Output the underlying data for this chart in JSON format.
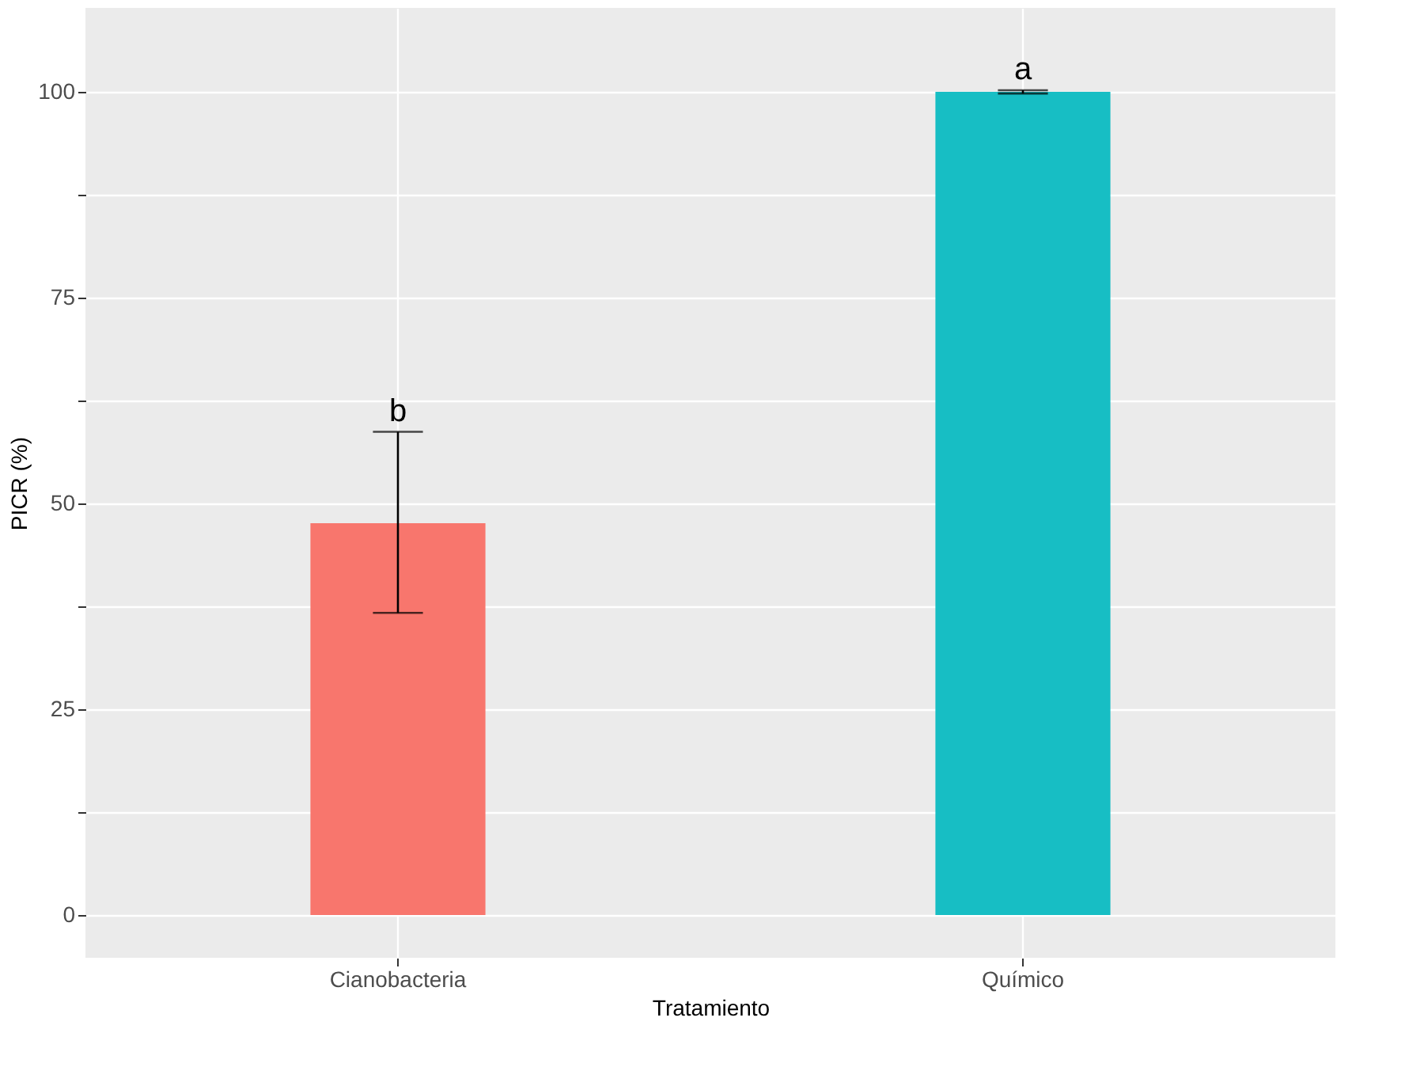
{
  "chart_data": {
    "type": "bar",
    "xlabel": "Tratamiento",
    "ylabel": "PICR (%)",
    "categories": [
      "Cianobacteria",
      "Químico"
    ],
    "values": [
      47.6,
      100
    ],
    "colors": [
      "#f8766d",
      "#17bec4"
    ],
    "errors": [
      [
        36.7,
        58.7
      ],
      [
        99.8,
        100.2
      ]
    ],
    "ylim": [
      -5.2,
      110.2
    ],
    "yticks": [
      0,
      {
        "value": 12.5,
        "label": null
      },
      25,
      {
        "value": 37.5,
        "label": null
      },
      50,
      {
        "value": 62.5,
        "label": null
      },
      75,
      {
        "value": 87.5,
        "label": null
      },
      100
    ],
    "annotations": [
      "b",
      "a"
    ],
    "grid": true,
    "legend": false
  }
}
